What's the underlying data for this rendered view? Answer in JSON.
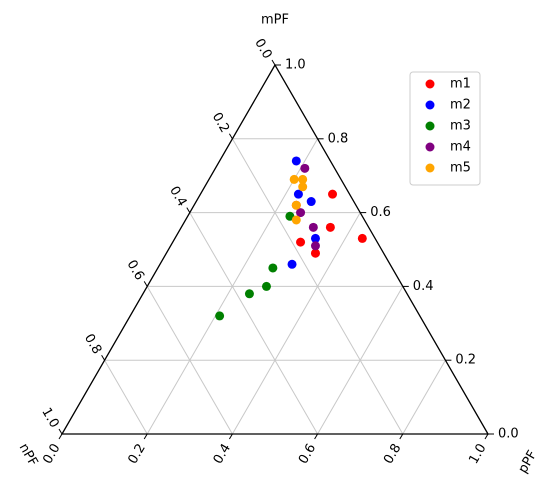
{
  "chart_data": {
    "type": "ternary",
    "axes": [
      {
        "label": "mPF",
        "ticks": [
          {
            "value": 0,
            "label": "0.0"
          },
          0.2,
          0.4,
          0.6,
          0.8,
          {
            "value": 1,
            "label": "1.0"
          }
        ]
      },
      {
        "label": "nPF",
        "ticks": [
          {
            "value": 0,
            "label": "0.0"
          },
          0.2,
          0.4,
          0.6,
          0.8,
          {
            "value": 1,
            "label": "1.0"
          }
        ]
      },
      {
        "label": "pPF",
        "ticks": [
          {
            "value": 0,
            "label": "0.0"
          },
          0.2,
          0.4,
          0.6,
          0.8,
          {
            "value": 1,
            "label": "1.0"
          }
        ]
      }
    ],
    "grid": true,
    "legend": "upper right",
    "series": [
      {
        "name": "m1",
        "color": "#ff0000",
        "values": [
          [
            0.65,
            0.04,
            0.31
          ],
          [
            0.56,
            0.09,
            0.35
          ],
          [
            0.53,
            0.03,
            0.44
          ],
          [
            0.52,
            0.18,
            0.3
          ],
          [
            0.49,
            0.16,
            0.35
          ],
          [
            0.62,
            0.14,
            0.24
          ]
        ]
      },
      {
        "name": "m2",
        "color": "#0000ff",
        "values": [
          [
            0.74,
            0.08,
            0.18
          ],
          [
            0.65,
            0.12,
            0.23
          ],
          [
            0.63,
            0.1,
            0.27
          ],
          [
            0.53,
            0.14,
            0.33
          ],
          [
            0.46,
            0.23,
            0.31
          ]
        ]
      },
      {
        "name": "m3",
        "color": "#008000",
        "values": [
          [
            0.59,
            0.17,
            0.24
          ],
          [
            0.45,
            0.28,
            0.27
          ],
          [
            0.4,
            0.32,
            0.28
          ],
          [
            0.38,
            0.37,
            0.25
          ],
          [
            0.32,
            0.47,
            0.21
          ]
        ]
      },
      {
        "name": "m4",
        "color": "#800080",
        "values": [
          [
            0.72,
            0.07,
            0.21
          ],
          [
            0.6,
            0.14,
            0.26
          ],
          [
            0.56,
            0.13,
            0.31
          ],
          [
            0.51,
            0.15,
            0.34
          ]
        ]
      },
      {
        "name": "m5",
        "color": "#ffa500",
        "values": [
          [
            0.69,
            0.11,
            0.2
          ],
          [
            0.69,
            0.09,
            0.22
          ],
          [
            0.67,
            0.1,
            0.23
          ],
          [
            0.62,
            0.14,
            0.24
          ],
          [
            0.58,
            0.16,
            0.26
          ]
        ]
      }
    ]
  }
}
